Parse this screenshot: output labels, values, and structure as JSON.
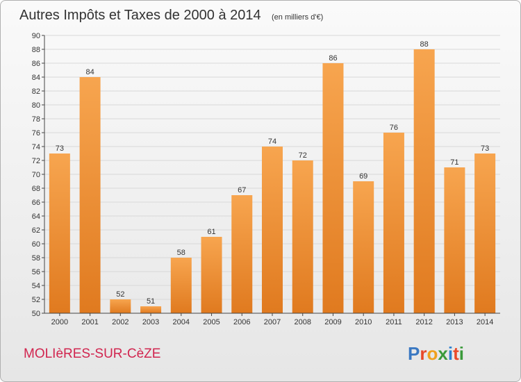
{
  "chart_data": {
    "type": "bar",
    "title": "Autres Impôts et Taxes de 2000 à 2014",
    "subtitle": "(en milliers d'€)",
    "categories": [
      "2000",
      "2001",
      "2002",
      "2003",
      "2004",
      "2005",
      "2006",
      "2007",
      "2008",
      "2009",
      "2010",
      "2011",
      "2012",
      "2013",
      "2014"
    ],
    "values": [
      73,
      84,
      52,
      51,
      58,
      61,
      67,
      74,
      72,
      86,
      69,
      76,
      88,
      71,
      73
    ],
    "ylim": [
      50,
      90
    ],
    "yticks": [
      50,
      52,
      54,
      56,
      58,
      60,
      62,
      64,
      66,
      68,
      70,
      72,
      74,
      76,
      78,
      80,
      82,
      84,
      86,
      88,
      90
    ],
    "grid": true,
    "colors": {
      "bar_light": "#f7a54f",
      "bar_dark": "#e07a1f",
      "grid": "#d8d8d8",
      "axis": "#444444"
    }
  },
  "footer": {
    "location": "MOLIèRES-SUR-CèZE",
    "brand": "Proxiti"
  }
}
